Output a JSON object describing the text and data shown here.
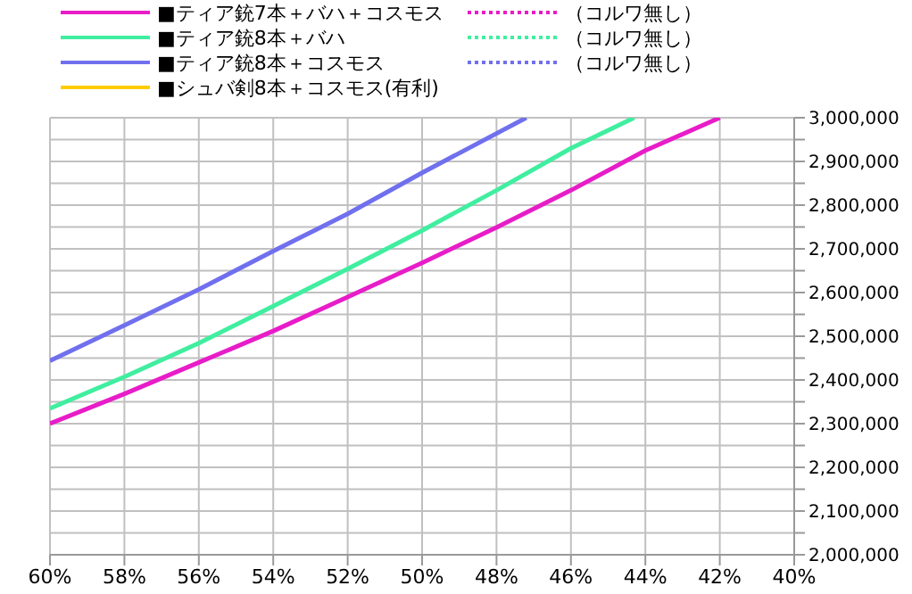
{
  "chart_data": {
    "type": "line",
    "legend": "top",
    "grid": true,
    "line_style": "solid",
    "marker": "none",
    "xlim": [
      60,
      40
    ],
    "xticks": [
      {
        "value": 60,
        "label": "60%"
      },
      {
        "value": 58,
        "label": "58%"
      },
      {
        "value": 56,
        "label": "56%"
      },
      {
        "value": 54,
        "label": "54%"
      },
      {
        "value": 52,
        "label": "52%"
      },
      {
        "value": 50,
        "label": "50%"
      },
      {
        "value": 48,
        "label": "48%"
      },
      {
        "value": 46,
        "label": "46%"
      },
      {
        "value": 44,
        "label": "44%"
      },
      {
        "value": 42,
        "label": "42%"
      },
      {
        "value": 40,
        "label": "40%"
      }
    ],
    "ylim": [
      2000000,
      3000000
    ],
    "yticks": [
      {
        "value": 2000000,
        "label": "2,000,000"
      },
      {
        "value": 2050000,
        "label": null
      },
      {
        "value": 2100000,
        "label": "2,100,000"
      },
      {
        "value": 2150000,
        "label": null
      },
      {
        "value": 2200000,
        "label": "2,200,000"
      },
      {
        "value": 2250000,
        "label": null
      },
      {
        "value": 2300000,
        "label": "2,300,000"
      },
      {
        "value": 2350000,
        "label": null
      },
      {
        "value": 2400000,
        "label": "2,400,000"
      },
      {
        "value": 2450000,
        "label": null
      },
      {
        "value": 2500000,
        "label": "2,500,000"
      },
      {
        "value": 2550000,
        "label": null
      },
      {
        "value": 2600000,
        "label": "2,600,000"
      },
      {
        "value": 2650000,
        "label": null
      },
      {
        "value": 2700000,
        "label": "2,700,000"
      },
      {
        "value": 2750000,
        "label": null
      },
      {
        "value": 2800000,
        "label": "2,800,000"
      },
      {
        "value": 2850000,
        "label": null
      },
      {
        "value": 2900000,
        "label": "2,900,000"
      },
      {
        "value": 2950000,
        "label": null
      },
      {
        "value": 3000000,
        "label": "3,000,000"
      }
    ],
    "series": [
      {
        "name": "■ティア銃7本＋バハ＋コスモス",
        "color": "#e81cc8",
        "x": [
          60,
          58,
          56,
          54,
          52,
          50,
          48,
          46,
          44,
          42
        ],
        "values": [
          2300000,
          2368000,
          2440000,
          2512000,
          2590000,
          2668000,
          2749000,
          2834000,
          2925000,
          3000000
        ]
      },
      {
        "name": "■ティア銃8本＋バハ",
        "color": "#40eea0",
        "x": [
          60,
          58,
          56,
          54,
          52,
          50,
          48,
          46,
          44.3
        ],
        "values": [
          2335000,
          2407000,
          2484000,
          2569000,
          2654000,
          2742000,
          2834000,
          2930000,
          3000000
        ]
      },
      {
        "name": "■ティア銃8本＋コスモス",
        "color": "#7070ee",
        "x": [
          60,
          58,
          56,
          54,
          52,
          50,
          47.2
        ],
        "values": [
          2444000,
          2525000,
          2607000,
          2695000,
          2780000,
          2874000,
          3000000
        ]
      },
      {
        "name": "■シュバ剣8本＋コスモス(有利)",
        "color": "#ffcc00"
      },
      {
        "name": "（コルワ無し）",
        "color": "#e81cc8",
        "line_style": "dotted"
      },
      {
        "name": "（コルワ無し）",
        "color": "#40eea0",
        "line_style": "dotted"
      },
      {
        "name": "（コルワ無し）",
        "color": "#7070ee",
        "line_style": "dotted"
      }
    ]
  }
}
